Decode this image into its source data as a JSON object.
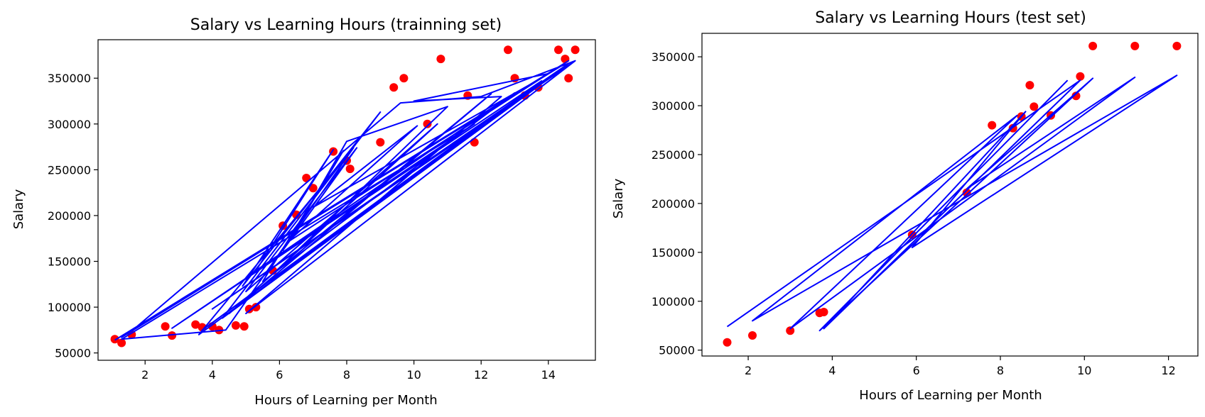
{
  "chart_data": [
    {
      "type": "scatter",
      "title": "Salary vs Learning Hours (trainning set)",
      "xlabel": "Hours of Learning per Month",
      "ylabel": "Salary",
      "xlim": [
        0.6,
        15.4
      ],
      "ylim": [
        42000,
        392000
      ],
      "xticks": [
        2,
        4,
        6,
        8,
        10,
        12,
        14
      ],
      "xtick_labels": [
        "2",
        "4",
        "6",
        "8",
        "10",
        12,
        "14"
      ],
      "yticks": [
        50000,
        100000,
        150000,
        200000,
        250000,
        300000,
        350000
      ],
      "ytick_labels": [
        "50000",
        "100000",
        "150000",
        "200000",
        "250000",
        "300000",
        "350000"
      ],
      "grid": false,
      "series": [
        {
          "kind": "scatter",
          "color": "#ff0000",
          "points": [
            [
              1.1,
              65000
            ],
            [
              1.3,
              61000
            ],
            [
              1.6,
              70000
            ],
            [
              2.6,
              79000
            ],
            [
              2.8,
              69000
            ],
            [
              3.5,
              81000
            ],
            [
              3.7,
              78000
            ],
            [
              4.0,
              79000
            ],
            [
              4.2,
              75000
            ],
            [
              4.7,
              80000
            ],
            [
              4.95,
              79000
            ],
            [
              5.1,
              98000
            ],
            [
              5.3,
              100000
            ],
            [
              5.8,
              140000
            ],
            [
              6.1,
              189000
            ],
            [
              6.5,
              201000
            ],
            [
              6.8,
              241000
            ],
            [
              7.0,
              230000
            ],
            [
              7.6,
              270000
            ],
            [
              8.0,
              260000
            ],
            [
              8.1,
              251000
            ],
            [
              9.0,
              280000
            ],
            [
              9.4,
              340000
            ],
            [
              9.7,
              350000
            ],
            [
              10.4,
              300000
            ],
            [
              10.8,
              371000
            ],
            [
              11.6,
              331000
            ],
            [
              11.8,
              280000
            ],
            [
              12.8,
              381000
            ],
            [
              13.0,
              350000
            ],
            [
              13.3,
              331000
            ],
            [
              13.7,
              340000
            ],
            [
              14.3,
              381000
            ],
            [
              14.5,
              371000
            ],
            [
              14.6,
              350000
            ],
            [
              14.8,
              381000
            ]
          ]
        },
        {
          "kind": "line",
          "color": "#0000ff",
          "points": [
            [
              1.1,
              64000
            ],
            [
              14.6,
              369000
            ],
            [
              1.3,
              67000
            ],
            [
              14.4,
              364000
            ],
            [
              1.6,
              74000
            ],
            [
              9.6,
              323000
            ],
            [
              12.0,
              330000
            ],
            [
              14.8,
              369000
            ],
            [
              4.0,
              98000
            ],
            [
              14.6,
              366000
            ],
            [
              3.7,
              75000
            ],
            [
              13.8,
              347000
            ],
            [
              2.8,
              77000
            ],
            [
              11.8,
              300000
            ],
            [
              1.3,
              65000
            ],
            [
              4.4,
              75000
            ],
            [
              8.2,
              274000
            ],
            [
              3.6,
              70000
            ],
            [
              14.4,
              360000
            ],
            [
              4.3,
              88000
            ],
            [
              9.0,
              313000
            ],
            [
              4.9,
              123000
            ],
            [
              7.6,
              272000
            ],
            [
              5.3,
              140000
            ],
            [
              13.0,
              334000
            ],
            [
              5.5,
              128000
            ],
            [
              7.9,
              271000
            ],
            [
              6.1,
              162000
            ],
            [
              8.3,
              274000
            ],
            [
              5.0,
              117000
            ],
            [
              10.7,
              300000
            ],
            [
              4.5,
              93000
            ],
            [
              12.3,
              333000
            ],
            [
              5.8,
              136000
            ],
            [
              11.0,
              319000
            ],
            [
              8.0,
              281000
            ],
            [
              6.5,
              186000
            ],
            [
              14.5,
              366000
            ],
            [
              5.4,
              160000
            ],
            [
              13.5,
              344000
            ],
            [
              7.0,
              209000
            ],
            [
              10.1,
              298000
            ],
            [
              6.2,
              170000
            ],
            [
              14.0,
              355000
            ],
            [
              10.0,
              325000
            ],
            [
              12.6,
              330000
            ],
            [
              5.0,
              93000
            ],
            [
              14.8,
              369000
            ]
          ]
        }
      ]
    },
    {
      "type": "scatter",
      "title": "Salary vs Learning Hours (test set)",
      "xlabel": "Hours of Learning per Month",
      "ylabel": "Salary",
      "xlim": [
        0.9,
        12.7
      ],
      "ylim": [
        44000,
        374000
      ],
      "xticks": [
        2,
        4,
        6,
        8,
        10,
        12
      ],
      "xtick_labels": [
        "2",
        "4",
        "6",
        "8",
        "10",
        "12"
      ],
      "yticks": [
        50000,
        100000,
        150000,
        200000,
        250000,
        300000,
        350000
      ],
      "ytick_labels": [
        "50000",
        "100000",
        "150000",
        "200000",
        "250000",
        "300000",
        "350000"
      ],
      "grid": false,
      "series": [
        {
          "kind": "scatter",
          "color": "#ff0000",
          "points": [
            [
              1.5,
              58000
            ],
            [
              2.1,
              65000
            ],
            [
              3.0,
              70000
            ],
            [
              3.7,
              88000
            ],
            [
              3.8,
              89000
            ],
            [
              5.9,
              168000
            ],
            [
              7.2,
              211000
            ],
            [
              7.8,
              280000
            ],
            [
              8.3,
              277000
            ],
            [
              8.5,
              289000
            ],
            [
              8.7,
              321000
            ],
            [
              8.8,
              299000
            ],
            [
              9.2,
              290000
            ],
            [
              9.8,
              310000
            ],
            [
              9.9,
              330000
            ],
            [
              10.2,
              361000
            ],
            [
              11.2,
              361000
            ],
            [
              12.2,
              361000
            ]
          ]
        },
        {
          "kind": "line",
          "color": "#0000ff",
          "points": [
            [
              1.5,
              74000
            ],
            [
              9.9,
              326000
            ],
            [
              3.8,
              72000
            ],
            [
              8.6,
              294000
            ],
            [
              5.9,
              155000
            ],
            [
              12.2,
              331000
            ],
            [
              2.1,
              80000
            ],
            [
              8.4,
              290000
            ],
            [
              3.0,
              72000
            ],
            [
              11.2,
              329000
            ],
            [
              7.2,
              215000
            ],
            [
              10.2,
              328000
            ],
            [
              3.7,
              70000
            ],
            [
              9.6,
              326000
            ]
          ]
        }
      ]
    }
  ]
}
